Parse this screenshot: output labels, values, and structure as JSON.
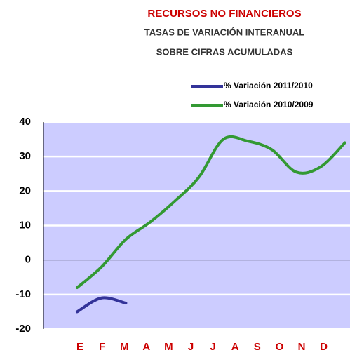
{
  "chart_data": {
    "type": "line",
    "title": "RECURSOS NO FINANCIEROS",
    "subtitle": [
      "TASAS DE VARIACIÓN INTERANUAL",
      "SOBRE CIFRAS ACUMULADAS"
    ],
    "categories": [
      "E",
      "F",
      "M",
      "A",
      "M",
      "J",
      "J",
      "A",
      "S",
      "O",
      "N",
      "D"
    ],
    "series": [
      {
        "name": "% Variación 2011/2010",
        "color": "#333399",
        "values": [
          -15,
          -11,
          -12.5,
          null,
          null,
          null,
          null,
          null,
          null,
          null,
          null,
          null
        ]
      },
      {
        "name": "% Variación 2010/2009",
        "color": "#339933",
        "values": [
          -8,
          -2,
          6,
          11,
          17,
          24,
          35,
          34.5,
          32,
          25.5,
          27,
          34
        ]
      }
    ],
    "ylim": [
      -20,
      40
    ],
    "yticks": [
      -20,
      -10,
      0,
      10,
      20,
      30,
      40
    ],
    "grid": true,
    "plot_color": "#ccccff",
    "title_color": "#cc0000",
    "axis_label_color": "#cc0000"
  }
}
